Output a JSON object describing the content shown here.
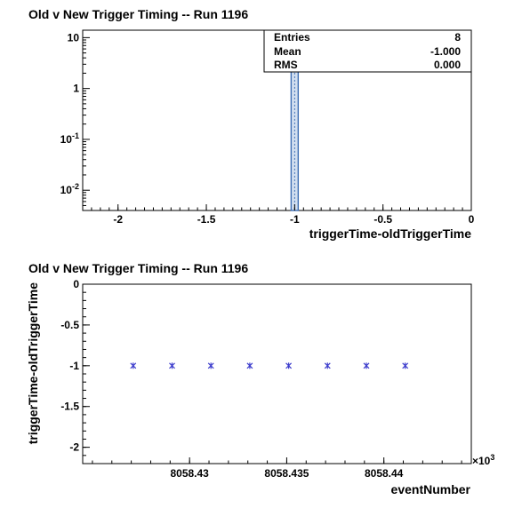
{
  "chart_data": [
    {
      "type": "bar",
      "title": "Old v New Trigger Timing -- Run 1196",
      "xlabel": "triggerTime-oldTriggerTime",
      "ylabel": "",
      "xlim": [
        -2.2,
        0.0
      ],
      "ylim": [
        0.004,
        14
      ],
      "yscale": "log",
      "grid": false,
      "x_ticks": [
        -2,
        -1.5,
        -1,
        -0.5,
        0
      ],
      "x_tick_labels": [
        "-2",
        "-1.5",
        "-1",
        "-0.5",
        "0"
      ],
      "y_ticks": [
        10,
        1,
        0.1,
        0.01
      ],
      "y_tick_labels": [
        {
          "base": "10",
          "exp": ""
        },
        {
          "base": "1",
          "exp": ""
        },
        {
          "base": "10",
          "exp": "-1"
        },
        {
          "base": "10",
          "exp": "-2"
        }
      ],
      "bins": [
        {
          "low": -1.02,
          "high": -0.98,
          "count": 8
        }
      ],
      "stats": {
        "placement": "top-right",
        "rows": [
          {
            "label": "Entries",
            "value": "8"
          },
          {
            "label": "Mean",
            "value": "-1.000"
          },
          {
            "label": "RMS",
            "value": "0.000"
          }
        ]
      },
      "colors": {
        "bar_fill": "#d2dff0",
        "bar_edge": "#3f6fb4"
      }
    },
    {
      "type": "scatter",
      "title": "Old v New Trigger Timing -- Run 1196",
      "xlabel": "eventNumber",
      "ylabel": "triggerTime-oldTriggerTime",
      "x_multiplier": "×10",
      "x_multiplier_exp": "3",
      "xlim": [
        8058.4245,
        8058.4445
      ],
      "ylim": [
        -2.2,
        0.0
      ],
      "grid": false,
      "x_ticks": [
        8058.43,
        8058.435,
        8058.44
      ],
      "x_tick_labels": [
        "8058.43",
        "8058.435",
        "8058.44"
      ],
      "y_ticks": [
        0,
        -0.5,
        -1,
        -1.5,
        -2
      ],
      "y_tick_labels": [
        "0",
        "-0.5",
        "-1",
        "-1.5",
        "-2"
      ],
      "x": [
        8058.4271,
        8058.4291,
        8058.4311,
        8058.4331,
        8058.4351,
        8058.4371,
        8058.4391,
        8058.4411
      ],
      "y": [
        -1,
        -1,
        -1,
        -1,
        -1,
        -1,
        -1,
        -1
      ],
      "colors": {
        "marker": "#3c3ccc"
      }
    }
  ]
}
